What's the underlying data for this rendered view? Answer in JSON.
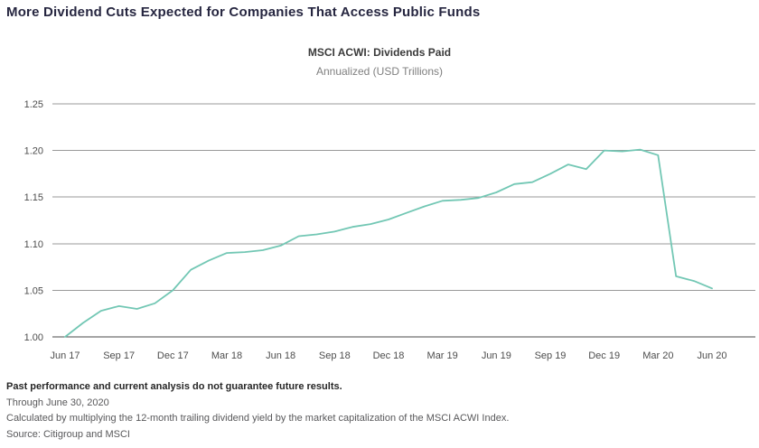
{
  "page": {
    "title": "More Dividend Cuts Expected for Companies That Access Public Funds"
  },
  "footnotes": {
    "disclaimer": "Past performance and current analysis do not guarantee future results.",
    "as_of": "Through June 30, 2020",
    "methodology": "Calculated by multiplying the 12-month trailing dividend yield by the market capitalization of the MSCI ACWI Index.",
    "source": "Source: Citigroup and MSCI"
  },
  "chart_data": {
    "type": "line",
    "title": "MSCI ACWI: Dividends Paid",
    "subtitle": "Annualized (USD Trillions)",
    "x": [
      "Jun 17",
      "Jul 17",
      "Aug 17",
      "Sep 17",
      "Oct 17",
      "Nov 17",
      "Dec 17",
      "Jan 18",
      "Feb 18",
      "Mar 18",
      "Apr 18",
      "May 18",
      "Jun 18",
      "Jul 18",
      "Aug 18",
      "Sep 18",
      "Oct 18",
      "Nov 18",
      "Dec 18",
      "Jan 19",
      "Feb 19",
      "Mar 19",
      "Apr 19",
      "May 19",
      "Jun 19",
      "Jul 19",
      "Aug 19",
      "Sep 19",
      "Oct 19",
      "Nov 19",
      "Dec 19",
      "Jan 20",
      "Feb 20",
      "Mar 20",
      "Apr 20",
      "May 20",
      "Jun 20"
    ],
    "values": [
      1.0,
      1.015,
      1.028,
      1.033,
      1.03,
      1.036,
      1.05,
      1.072,
      1.082,
      1.09,
      1.091,
      1.093,
      1.098,
      1.108,
      1.11,
      1.113,
      1.118,
      1.121,
      1.126,
      1.133,
      1.14,
      1.146,
      1.147,
      1.149,
      1.155,
      1.164,
      1.166,
      1.175,
      1.185,
      1.18,
      1.2,
      1.199,
      1.201,
      1.195,
      1.065,
      1.06,
      1.052
    ],
    "x_tick_every": 3,
    "x_tick_labels": [
      "Jun 17",
      "Sep 17",
      "Dec 17",
      "Mar 18",
      "Jun 18",
      "Sep 18",
      "Dec 18",
      "Mar 19",
      "Jun 19",
      "Sep 19",
      "Dec 19",
      "Mar 20",
      "Jun 20"
    ],
    "y_ticks": [
      1.0,
      1.05,
      1.1,
      1.15,
      1.2,
      1.25
    ],
    "ylim": [
      1.0,
      1.25
    ],
    "grid": true,
    "legend": "none",
    "line_color": "#72c7b4"
  }
}
